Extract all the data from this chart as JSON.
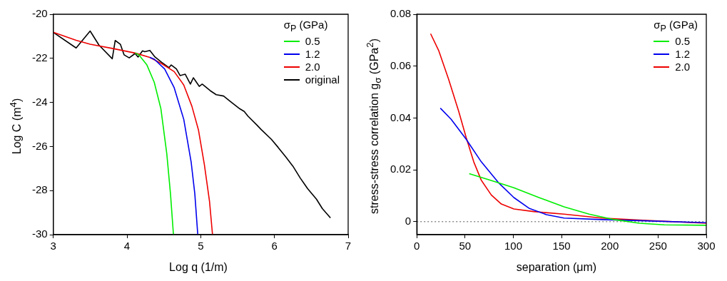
{
  "chart_data": [
    {
      "type": "line",
      "xlabel": "Log q  (1/m)",
      "ylabel": "Log C  (m$^{4}$)",
      "legend_title": "σ$_{P}$ (GPa)",
      "legend": "top right",
      "grid": false,
      "marker": "none",
      "line_style": "solid",
      "xlim": [
        3,
        7
      ],
      "xticks": [
        3,
        4,
        5,
        6,
        7
      ],
      "ylim": [
        -30,
        -20
      ],
      "yticks": [
        -30,
        -28,
        -26,
        -24,
        -22,
        -20
      ],
      "series": [
        {
          "name": "0.5",
          "color": "#00ee00",
          "x": [
            4.11,
            4.16,
            4.27,
            4.37,
            4.46,
            4.54,
            4.59,
            4.63
          ],
          "values": [
            -21.76,
            -21.84,
            -22.3,
            -23.09,
            -24.29,
            -26.34,
            -28.15,
            -30
          ]
        },
        {
          "name": "1.2",
          "color": "#0000ee",
          "x": [
            4.31,
            4.37,
            4.51,
            4.64,
            4.77,
            4.87,
            4.92,
            4.96
          ],
          "values": [
            -21.96,
            -22.04,
            -22.48,
            -23.33,
            -24.77,
            -26.7,
            -28.15,
            -30
          ]
        },
        {
          "name": "2.0",
          "color": "#ee0000",
          "x": [
            3.0,
            3.31,
            3.5,
            3.8,
            4.11,
            4.31,
            4.47,
            4.64,
            4.77,
            4.88,
            4.97,
            5.05,
            5.12,
            5.16
          ],
          "values": [
            -20.82,
            -21.18,
            -21.36,
            -21.55,
            -21.76,
            -21.96,
            -22.24,
            -22.6,
            -23.21,
            -24.17,
            -25.26,
            -26.83,
            -28.51,
            -30
          ]
        },
        {
          "name": "original",
          "color": "#000000",
          "x": [
            3.0,
            3.31,
            3.5,
            3.62,
            3.8,
            3.84,
            3.91,
            3.96,
            4.03,
            4.11,
            4.15,
            4.21,
            4.24,
            4.31,
            4.38,
            4.47,
            4.57,
            4.6,
            4.67,
            4.72,
            4.79,
            4.86,
            4.9,
            4.98,
            5.02,
            5.13,
            5.21,
            5.31,
            5.4,
            5.53,
            5.59,
            5.64,
            5.76,
            5.82,
            5.96,
            6.05,
            6.15,
            6.25,
            6.35,
            6.45,
            6.57,
            6.65,
            6.76
          ],
          "values": [
            -20.82,
            -21.53,
            -20.76,
            -21.4,
            -22.02,
            -21.19,
            -21.36,
            -21.84,
            -21.98,
            -21.78,
            -21.94,
            -21.66,
            -21.7,
            -21.64,
            -21.94,
            -22.18,
            -22.42,
            -22.3,
            -22.48,
            -22.78,
            -22.72,
            -23.17,
            -22.88,
            -23.27,
            -23.17,
            -23.47,
            -23.65,
            -23.71,
            -23.95,
            -24.29,
            -24.41,
            -24.62,
            -25.02,
            -25.23,
            -25.68,
            -26.04,
            -26.46,
            -26.89,
            -27.43,
            -27.91,
            -28.39,
            -28.82,
            -29.24
          ]
        }
      ]
    },
    {
      "type": "line",
      "xlabel": "separation  (μm)",
      "ylabel": "stress-stress correlation g$_{σ}$  (GPa$^{2}$)",
      "legend_title": "σ$_{P}$ (GPa)",
      "legend": "top right",
      "grid": false,
      "marker": "none",
      "line_style": "solid",
      "xlim": [
        0,
        300
      ],
      "xticks": [
        0,
        50,
        100,
        150,
        200,
        250,
        300
      ],
      "ylim": [
        -0.005,
        0.08
      ],
      "yticks": [
        0,
        0.02,
        0.04,
        0.06,
        0.08
      ],
      "ref_lines": [
        {
          "axis": "y",
          "value": 0,
          "color": "#555555",
          "line_style": "dotted"
        }
      ],
      "series": [
        {
          "name": "0.5",
          "color": "#00ee00",
          "x": [
            54.3,
            74.6,
            100.6,
            126.6,
            152.6,
            178.6,
            204.6,
            230.6,
            256.6,
            300
          ],
          "values": [
            0.0185,
            0.0162,
            0.0131,
            0.0093,
            0.0057,
            0.0029,
            0.0008,
            -0.0006,
            -0.0012,
            -0.0014
          ]
        },
        {
          "name": "1.2",
          "color": "#0000ee",
          "x": [
            24.4,
            35.6,
            51.2,
            66.8,
            85,
            100.6,
            116.2,
            134.4,
            152.6,
            191.6,
            230.6,
            299.5
          ],
          "values": [
            0.0438,
            0.0395,
            0.0318,
            0.0231,
            0.0149,
            0.0093,
            0.0052,
            0.0027,
            0.0014,
            0.0008,
            0.0004,
            -0.0004
          ]
        },
        {
          "name": "2.0",
          "color": "#ee0000",
          "x": [
            14.3,
            22.6,
            33,
            43.4,
            51.2,
            59,
            66.8,
            77.2,
            87.6,
            100.6,
            121,
            152.6,
            191.6,
            230.6,
            300
          ],
          "values": [
            0.0725,
            0.0661,
            0.0549,
            0.0426,
            0.0324,
            0.0231,
            0.016,
            0.0103,
            0.0068,
            0.0049,
            0.0039,
            0.0029,
            0.0014,
            0.0006,
            -0.0006
          ]
        }
      ]
    }
  ]
}
